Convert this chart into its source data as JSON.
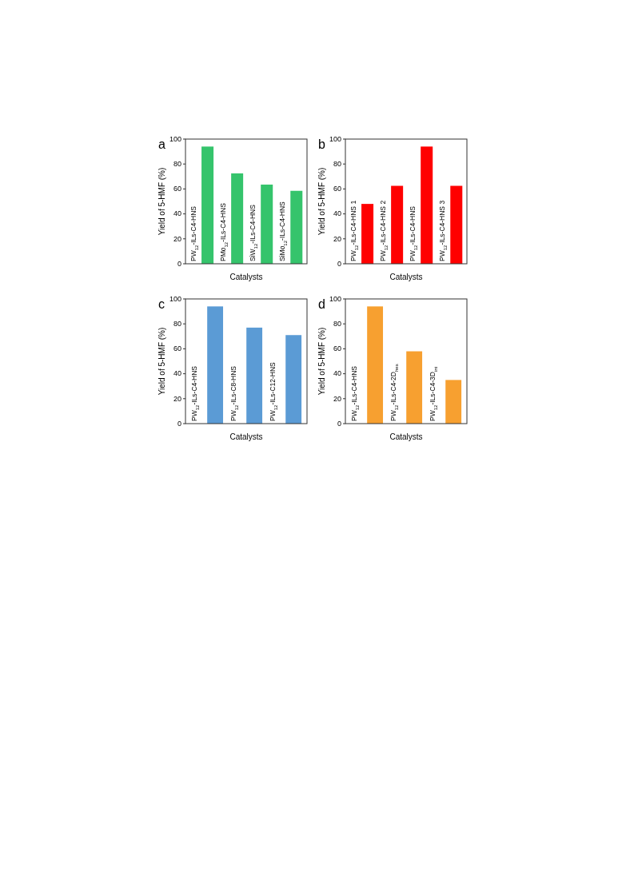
{
  "chart_data": [
    {
      "type": "bar",
      "title": "a",
      "xlabel": "Catalysts",
      "ylabel": "Yield of 5-HMF (%)",
      "categories": [
        "PW$_{12}$-ILs-C4-HNS",
        "PMo$_{12}$-ILs-C4-HNS",
        "SiW$_{12}$-ILs-C4-HNS",
        "SiMo$_{12}$-ILs-C4-HNS"
      ],
      "values": [
        94,
        72.5,
        63.5,
        58.5
      ],
      "color": "#35c46c",
      "ylim": [
        0,
        100
      ],
      "yticks": [
        0,
        20,
        40,
        60,
        80,
        100
      ]
    },
    {
      "type": "bar",
      "title": "b",
      "xlabel": "Catalysts",
      "ylabel": "Yield of 5-HMF (%)",
      "categories": [
        "PW$_{12}$-ILs-C4-HNS 1",
        "PW$_{12}$-ILs-C4-HNS 2",
        "PW$_{12}$-ILs-C4-HNS",
        "PW$_{12}$-ILs-C4-HNS 3"
      ],
      "values": [
        48,
        62.5,
        94,
        62.5
      ],
      "color": "#ff0000",
      "ylim": [
        0,
        100
      ],
      "yticks": [
        0,
        20,
        40,
        60,
        80,
        100
      ]
    },
    {
      "type": "bar",
      "title": "c",
      "xlabel": "Catalysts",
      "ylabel": "Yield of 5-HMF (%)",
      "categories": [
        "PW$_{12}$-ILs-C4-HNS",
        "PW$_{12}$-ILs-C8-HNS",
        "PW$_{12}$-ILs-C12-HNS"
      ],
      "values": [
        94,
        77,
        71
      ],
      "color": "#5b9bd5",
      "ylim": [
        0,
        100
      ],
      "yticks": [
        0,
        20,
        40,
        60,
        80,
        100
      ]
    },
    {
      "type": "bar",
      "title": "d",
      "xlabel": "Catalysts",
      "ylabel": "Yield of 5-HMF (%)",
      "categories": [
        "PW$_{12}$-ILs-C4-HNS",
        "PW$_{12}$-ILs-C4-2D$_{hex}$",
        "PW$_{12}$-ILs-C4-3D$_{int}$"
      ],
      "values": [
        94,
        58,
        35
      ],
      "color": "#f7a030",
      "ylim": [
        0,
        100
      ],
      "yticks": [
        0,
        20,
        40,
        60,
        80,
        100
      ]
    }
  ]
}
